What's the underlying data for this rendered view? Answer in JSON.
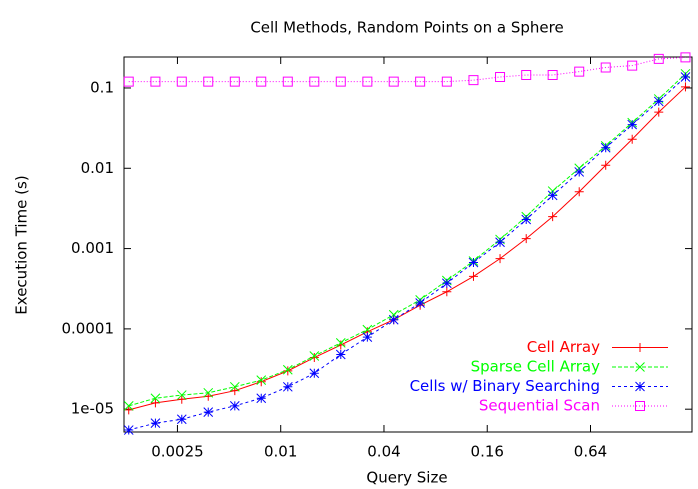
{
  "chart_data": {
    "type": "line",
    "title": "Cell Methods, Random Points on a Sphere",
    "x_label": "Query Size",
    "y_label": "Execution Time (s)",
    "x_scale": "log",
    "y_scale": "log",
    "xlim": [
      0.00122,
      2.5
    ],
    "ylim": [
      5.2e-06,
      0.243
    ],
    "xticks": [
      0.0025,
      0.01,
      0.04,
      0.16,
      0.64
    ],
    "yticks": [
      {
        "value": 1e-05,
        "label": "1e-05"
      },
      0.0001,
      0.001,
      0.01,
      0.1
    ],
    "legend_position": "bottom right",
    "x": [
      0.0013,
      0.00186,
      0.00265,
      0.00378,
      0.0054,
      0.0077,
      0.011,
      0.0157,
      0.0224,
      0.032,
      0.0456,
      0.065,
      0.093,
      0.133,
      0.19,
      0.27,
      0.385,
      0.55,
      0.785,
      1.12,
      1.6,
      2.29
    ],
    "series": [
      {
        "name": "Cell Array",
        "color": "#ff0000",
        "marker": "plus",
        "dash": "none",
        "values": [
          9.8e-06,
          1.2e-05,
          1.33e-05,
          1.45e-05,
          1.7e-05,
          2.2e-05,
          3e-05,
          4.4e-05,
          6.3e-05,
          9.2e-05,
          0.00013,
          0.000197,
          0.00029,
          0.00045,
          0.00075,
          0.00133,
          0.0025,
          0.0051,
          0.0109,
          0.023,
          0.05,
          0.103
        ]
      },
      {
        "name": "Sparse Cell Array",
        "color": "#00ff00",
        "marker": "cross",
        "dash": "4,2",
        "values": [
          1.1e-05,
          1.37e-05,
          1.5e-05,
          1.6e-05,
          1.9e-05,
          2.3e-05,
          3.1e-05,
          4.6e-05,
          6.7e-05,
          9.8e-05,
          0.00015,
          0.00023,
          0.0004,
          0.0007,
          0.0013,
          0.0025,
          0.0052,
          0.01,
          0.019,
          0.037,
          0.073,
          0.15
        ]
      },
      {
        "name": "Cells w/ Binary Searching",
        "color": "#0000ff",
        "marker": "star",
        "dash": "3,3",
        "values": [
          5.5e-06,
          6.7e-06,
          7.5e-06,
          9.2e-06,
          1.1e-05,
          1.37e-05,
          1.9e-05,
          2.8e-05,
          4.8e-05,
          7.9e-05,
          0.00013,
          0.00021,
          0.00037,
          0.00067,
          0.0012,
          0.0023,
          0.0046,
          0.009,
          0.018,
          0.035,
          0.068,
          0.137
        ]
      },
      {
        "name": "Sequential Scan",
        "color": "#ff00ff",
        "marker": "square",
        "dash": "1,2",
        "values": [
          0.12,
          0.12,
          0.12,
          0.12,
          0.12,
          0.12,
          0.12,
          0.12,
          0.12,
          0.12,
          0.12,
          0.12,
          0.12,
          0.125,
          0.137,
          0.145,
          0.145,
          0.16,
          0.18,
          0.19,
          0.23,
          0.24
        ]
      }
    ]
  }
}
